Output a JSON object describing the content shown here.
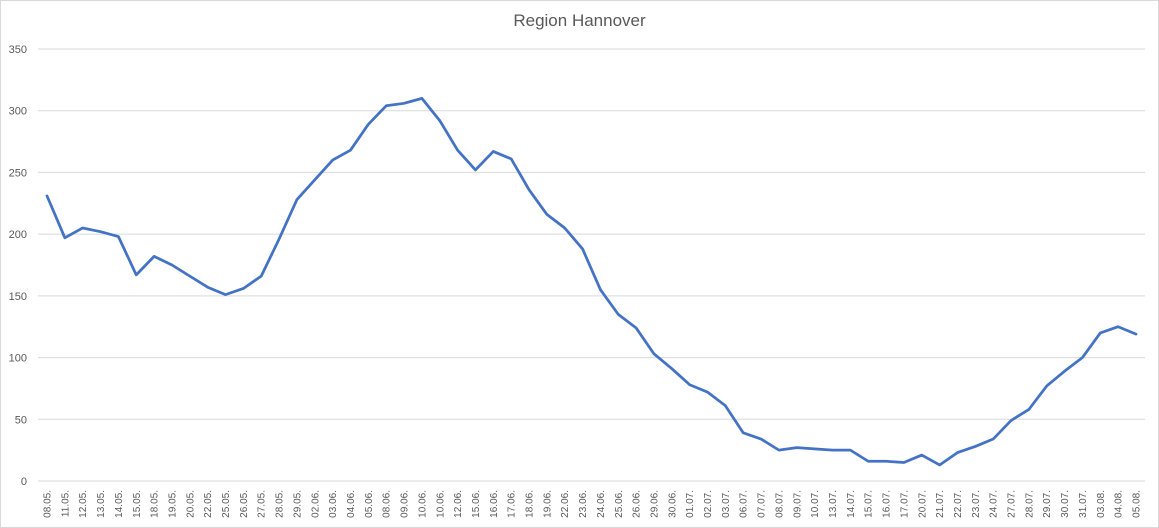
{
  "chart_data": {
    "type": "line",
    "title": "Region Hannover",
    "xlabel": "",
    "ylabel": "",
    "ylim": [
      0,
      350
    ],
    "yticks": [
      0,
      50,
      100,
      150,
      200,
      250,
      300,
      350
    ],
    "grid": true,
    "legend": "none",
    "line_color": "#4472c4",
    "grid_color": "#d9d9d9",
    "categories": [
      "08.05.",
      "11.05.",
      "12.05.",
      "13.05.",
      "14.05.",
      "15.05.",
      "18.05.",
      "19.05.",
      "20.05.",
      "22.05.",
      "25.05.",
      "26.05.",
      "27.05.",
      "28.05.",
      "29.05.",
      "02.06.",
      "03.06.",
      "04.06.",
      "05.06.",
      "08.06.",
      "09.06.",
      "10.06.",
      "10.06.",
      "12.06.",
      "15.06.",
      "16.06.",
      "17.06.",
      "18.06.",
      "19.06.",
      "22.06.",
      "23.06.",
      "24.06.",
      "25.06.",
      "26.06.",
      "29.06.",
      "30.06.",
      "01.07.",
      "02.07.",
      "03.07.",
      "06.07.",
      "07.07.",
      "08.07.",
      "09.07.",
      "10.07.",
      "13.07.",
      "14.07.",
      "15.07.",
      "16.07.",
      "17.07.",
      "20.07.",
      "21.07.",
      "22.07.",
      "23.07.",
      "24.07.",
      "27.07.",
      "28.07.",
      "29.07.",
      "30.07.",
      "31.07.",
      "03.08.",
      "04.08.",
      "05.08."
    ],
    "series": [
      {
        "values": [
          231,
          197,
          205,
          202,
          198,
          167,
          182,
          175,
          166,
          157,
          151,
          156,
          166,
          196,
          228,
          244,
          260,
          268,
          289,
          304,
          306,
          310,
          292,
          268,
          252,
          267,
          261,
          236,
          216,
          205,
          188,
          155,
          135,
          124,
          103,
          91,
          78,
          72,
          61,
          39,
          34,
          25,
          27,
          26,
          25,
          25,
          16,
          16,
          15,
          21,
          13,
          23,
          28,
          34,
          49,
          58,
          77,
          89,
          100,
          120,
          125,
          119
        ]
      }
    ]
  }
}
